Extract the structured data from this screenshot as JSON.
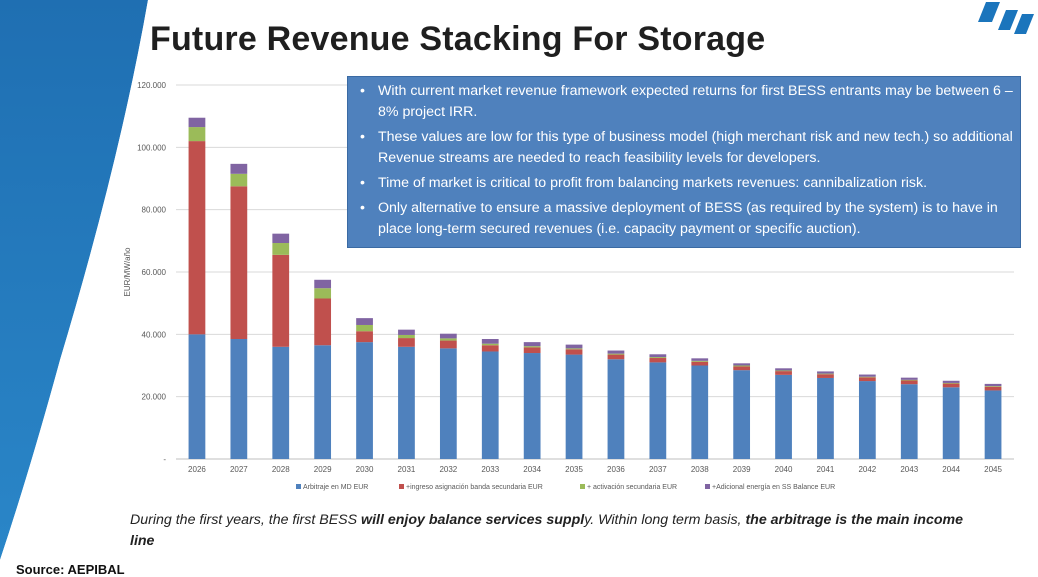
{
  "slide": {
    "title": "Future Revenue Stacking For Storage",
    "source": "Source: AEPIBAL",
    "caption": {
      "p1": "During the first years, the first BESS ",
      "b1": "will enjoy balance services suppl",
      "p2": "y. Within long term basis, ",
      "b2": "the arbitrage is the main income line"
    },
    "bullets": [
      "With current market revenue framework expected returns for first BESS entrants may be between 6 – 8% project IRR.",
      "These values are low for this type of business model (high merchant risk and new tech.) so additional Revenue streams are needed to reach feasibility levels for developers.",
      "Time of market is critical to profit from balancing markets revenues: cannibalization risk.",
      "Only alternative to ensure a massive deployment of BESS (as required by the system) is to have in place long-term secured revenues (i.e. capacity payment or specific auction)."
    ],
    "bullet_glyph": "•",
    "colors": {
      "callout_bg": "#4f81bd",
      "deco_blue": "#1f6fb2",
      "logo_blue": "#1b75bc"
    }
  },
  "chart_data": {
    "type": "bar",
    "stacked": true,
    "categories": [
      "2026",
      "2027",
      "2028",
      "2029",
      "2030",
      "2031",
      "2032",
      "2033",
      "2034",
      "2035",
      "2036",
      "2037",
      "2038",
      "2039",
      "2040",
      "2041",
      "2042",
      "2043",
      "2044",
      "2045"
    ],
    "series": [
      {
        "name": "Arbitraje en MD EUR",
        "color": "#4f81bd",
        "values": [
          40000,
          38500,
          36000,
          36500,
          37500,
          36000,
          35500,
          34500,
          34000,
          33500,
          32000,
          31000,
          30000,
          28500,
          27000,
          26000,
          25000,
          24000,
          23000,
          22000
        ]
      },
      {
        "name": "+ingreso asignación banda secundaria EUR",
        "color": "#c0504d",
        "values": [
          62000,
          49000,
          29500,
          15000,
          3500,
          2800,
          2500,
          2000,
          1800,
          1700,
          1500,
          1400,
          1200,
          1200,
          1200,
          1200,
          1200,
          1200,
          1200,
          1200
        ]
      },
      {
        "name": "+ activación secundaria EUR",
        "color": "#9bbb59",
        "values": [
          4500,
          4000,
          3800,
          3300,
          2000,
          1000,
          700,
          500,
          400,
          300,
          300,
          300,
          300,
          300,
          200,
          200,
          200,
          200,
          200,
          200
        ]
      },
      {
        "name": "+Adicional energía en SS Balance EUR",
        "color": "#8064a2",
        "values": [
          3000,
          3200,
          3000,
          2700,
          2200,
          1700,
          1500,
          1500,
          1300,
          1200,
          1000,
          900,
          800,
          700,
          700,
          700,
          700,
          700,
          700,
          700
        ]
      }
    ],
    "ylabel": "EUR/MW/año",
    "xlabel": "",
    "ylim": [
      0,
      120000
    ],
    "yticks": [
      0,
      20000,
      40000,
      60000,
      80000,
      100000,
      120000
    ],
    "ytick_labels": [
      "-",
      "20.000",
      "40.000",
      "60.000",
      "80.000",
      "100.000",
      "120.000"
    ],
    "grid": true,
    "legend": "bottom"
  }
}
